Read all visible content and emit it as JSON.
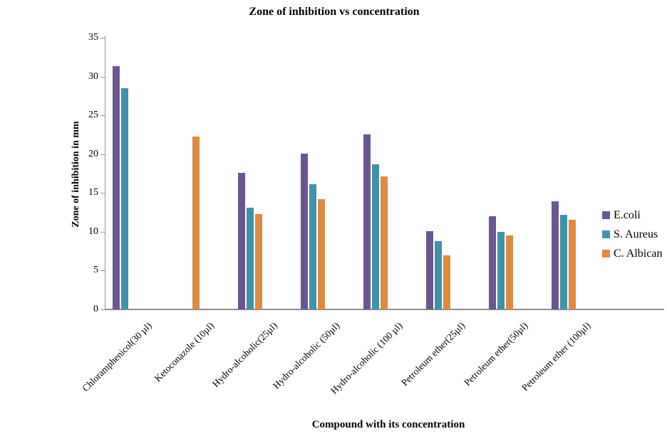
{
  "chart_data": {
    "type": "bar",
    "title": "Zone of inhibition vs concentration",
    "xlabel": "Compound with its concentration",
    "ylabel": "Zone of inhibition in mm",
    "ylim": [
      0,
      35
    ],
    "ytick_step": 5,
    "grid": false,
    "legend_position": "right",
    "categories": [
      "Chloramphenicol(30 µl)",
      "Ketoconazole (10µl)",
      "Hydro-alcoholic(25µl)",
      "Hydro-alcoholic (50µl)",
      "Hydro-alcoholic (100 µl)",
      "Petroleum ether(25µl)",
      "Petroleum ether(50µl)",
      "Petroleum ether (100µl)"
    ],
    "series": [
      {
        "name": "E.coli",
        "color": "#6C5691",
        "values": [
          31.3,
          null,
          17.6,
          20.1,
          22.5,
          10.1,
          12.0,
          13.9
        ]
      },
      {
        "name": "S. Aureus",
        "color": "#3F92A9",
        "values": [
          28.5,
          null,
          13.1,
          16.1,
          18.7,
          8.8,
          10.0,
          12.2
        ]
      },
      {
        "name": "C. Albican",
        "color": "#DD8B41",
        "values": [
          null,
          22.3,
          12.3,
          14.2,
          17.1,
          7.0,
          9.5,
          11.5
        ]
      }
    ]
  }
}
